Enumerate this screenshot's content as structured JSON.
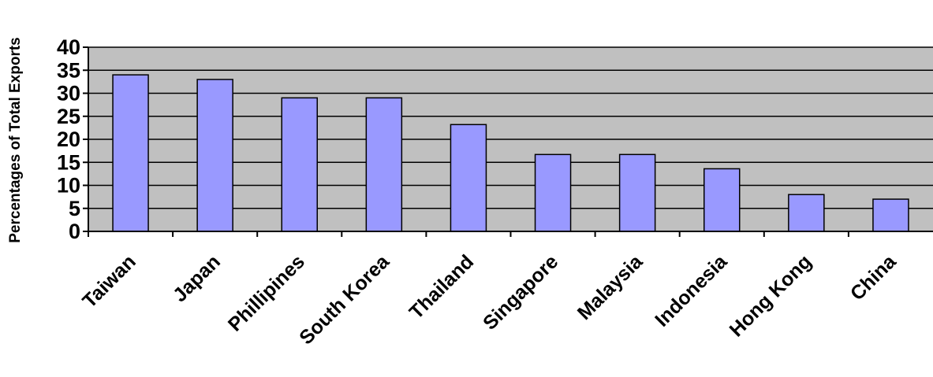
{
  "chart_data": {
    "type": "bar",
    "title": "",
    "xlabel": "",
    "ylabel": "Percentages of Total Exports",
    "categories": [
      "Taiwan",
      "Japan",
      "Phillipines",
      "South Korea",
      "Thailand",
      "Singapore",
      "Malaysia",
      "Indonesia",
      "Hong Kong",
      "China"
    ],
    "values": [
      34,
      33,
      29,
      29,
      23.2,
      16.7,
      16.7,
      13.6,
      8,
      7
    ],
    "ylim": [
      0,
      40
    ],
    "yticks": [
      0,
      5,
      10,
      15,
      20,
      25,
      30,
      35,
      40
    ],
    "grid": true,
    "legend": "none",
    "colors": {
      "plot_background": "#c0c0c0",
      "bar_fill": "#9999ff",
      "bar_stroke": "#000000",
      "gridline": "#000000",
      "page_background": "#ffffff"
    }
  }
}
